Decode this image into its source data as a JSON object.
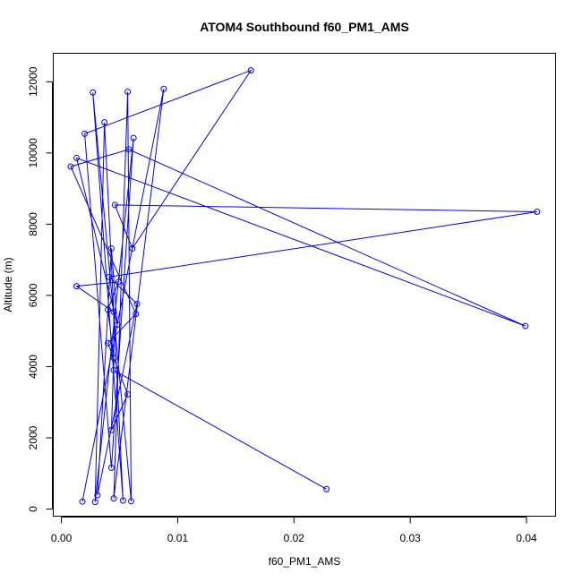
{
  "chart_data": {
    "type": "scatter",
    "title": "ATOM4 Southbound f60_PM1_AMS",
    "xlabel": "f60_PM1_AMS",
    "ylabel": "Altitude (m)",
    "xlim": [
      -0.0007,
      0.0425
    ],
    "ylim": [
      -200,
      12800
    ],
    "x_ticks": [
      0.0,
      0.01,
      0.02,
      0.03,
      0.04
    ],
    "x_tick_labels": [
      "0.00",
      "0.01",
      "0.02",
      "0.03",
      "0.04"
    ],
    "y_ticks": [
      0,
      2000,
      4000,
      6000,
      8000,
      10000,
      12000
    ],
    "y_tick_labels": [
      "0",
      "2000",
      "4000",
      "6000",
      "8000",
      "10000",
      "12000"
    ],
    "grid": false,
    "series_color": "#0000ff",
    "connected": true,
    "points": [
      {
        "x": 0.0018,
        "y": 210
      },
      {
        "x": 0.0088,
        "y": 11800
      },
      {
        "x": 0.0045,
        "y": 300
      },
      {
        "x": 0.0057,
        "y": 11720
      },
      {
        "x": 0.006,
        "y": 220
      },
      {
        "x": 0.0027,
        "y": 11700
      },
      {
        "x": 0.0053,
        "y": 240
      },
      {
        "x": 0.0037,
        "y": 10860
      },
      {
        "x": 0.0029,
        "y": 200
      },
      {
        "x": 0.0062,
        "y": 10420
      },
      {
        "x": 0.0043,
        "y": 1160
      },
      {
        "x": 0.002,
        "y": 10540
      },
      {
        "x": 0.0163,
        "y": 12320
      },
      {
        "x": 0.0061,
        "y": 7320
      },
      {
        "x": 0.0046,
        "y": 8540
      },
      {
        "x": 0.0409,
        "y": 8350
      },
      {
        "x": 0.0041,
        "y": 6520
      },
      {
        "x": 0.0065,
        "y": 5760
      },
      {
        "x": 0.0031,
        "y": 390
      },
      {
        "x": 0.0043,
        "y": 7320
      },
      {
        "x": 0.0048,
        "y": 5180
      },
      {
        "x": 0.0013,
        "y": 9860
      },
      {
        "x": 0.0399,
        "y": 5140
      },
      {
        "x": 0.0058,
        "y": 10100
      },
      {
        "x": 0.0008,
        "y": 9620
      },
      {
        "x": 0.0064,
        "y": 5480
      },
      {
        "x": 0.004,
        "y": 4660
      },
      {
        "x": 0.0057,
        "y": 3220
      },
      {
        "x": 0.0043,
        "y": 2220
      },
      {
        "x": 0.0045,
        "y": 4250
      },
      {
        "x": 0.004,
        "y": 5600
      },
      {
        "x": 0.0049,
        "y": 6380
      },
      {
        "x": 0.0013,
        "y": 6260
      },
      {
        "x": 0.0045,
        "y": 5540
      },
      {
        "x": 0.0045,
        "y": 3900
      },
      {
        "x": 0.0228,
        "y": 560
      }
    ]
  }
}
